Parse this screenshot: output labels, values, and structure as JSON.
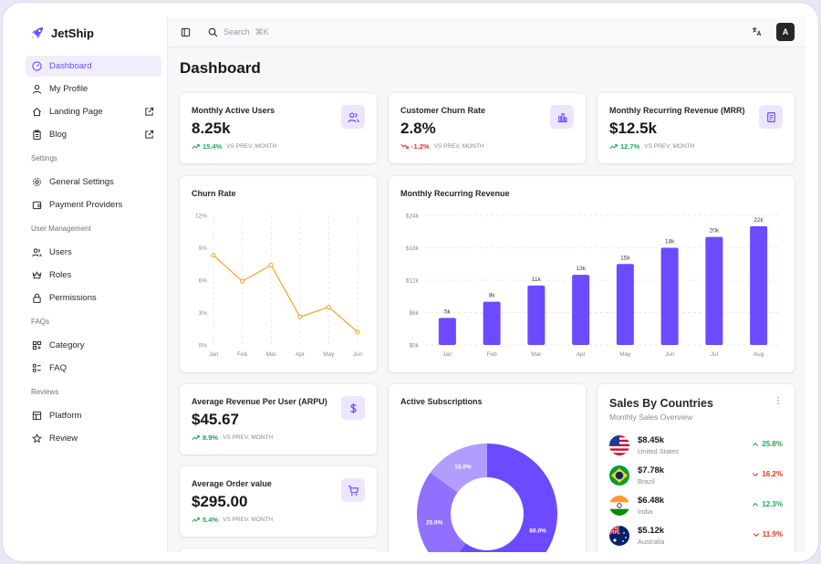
{
  "brand": {
    "name": "JetShip",
    "accent": "#6d4aff"
  },
  "sidebar": {
    "items_top": [
      {
        "label": "Dashboard"
      },
      {
        "label": "My Profile"
      },
      {
        "label": "Landing Page"
      },
      {
        "label": "Blog"
      }
    ],
    "sections": [
      {
        "title": "Settings",
        "items": [
          "General Settings",
          "Payment Providers"
        ]
      },
      {
        "title": "User Management",
        "items": [
          "Users",
          "Roles",
          "Permissions"
        ]
      },
      {
        "title": "FAQs",
        "items": [
          "Category",
          "FAQ"
        ]
      },
      {
        "title": "Reviews",
        "items": [
          "Platform",
          "Review"
        ]
      }
    ]
  },
  "topbar": {
    "search_placeholder": "Search",
    "search_shortcut": "⌘K",
    "avatar_initial": "A"
  },
  "page": {
    "title": "Dashboard"
  },
  "stats": {
    "mau": {
      "title": "Monthly Active Users",
      "value": "8.25k",
      "change": "15.4%",
      "label": "VS PREV. MONTH"
    },
    "churn": {
      "title": "Customer Churn Rate",
      "value": "2.8%",
      "change": "-1.2%",
      "label": "VS PREV. MONTH"
    },
    "mrr": {
      "title": "Monthly Recurring Revenue (MRR)",
      "value": "$12.5k",
      "change": "12.7%",
      "label": "VS PREV. MONTH"
    },
    "arpu": {
      "title": "Average Revenue Per User (ARPU)",
      "value": "$45.67",
      "change": "8.9%",
      "label": "VS PREV. MONTH"
    },
    "aov": {
      "title": "Average Order value",
      "value": "$295.00",
      "change": "5.4%",
      "label": "VS PREV. MONTH"
    }
  },
  "charts": {
    "churn_title": "Churn Rate",
    "mrr_title": "Monthly Recurring Revenue",
    "subs_title": "Active Subscriptions"
  },
  "chart_data": [
    {
      "type": "line",
      "title": "Churn Rate",
      "categories": [
        "Jan",
        "Feb",
        "Mar",
        "Apr",
        "May",
        "Jun"
      ],
      "values": [
        8.3,
        5.9,
        7.4,
        2.6,
        3.5,
        1.2
      ],
      "yticks": [
        "0%",
        "3%",
        "6%",
        "9%",
        "12%"
      ],
      "ylim": [
        0,
        12
      ],
      "color": "#f5a524"
    },
    {
      "type": "bar",
      "title": "Monthly Recurring Revenue",
      "categories": [
        "Jan",
        "Feb",
        "Mar",
        "Apr",
        "May",
        "Jun",
        "Jul",
        "Aug"
      ],
      "values": [
        5,
        8,
        11,
        13,
        15,
        18,
        20,
        22
      ],
      "labels": [
        "5k",
        "8k",
        "11k",
        "13k",
        "15k",
        "18k",
        "20k",
        "22k"
      ],
      "yticks": [
        "$0k",
        "$6k",
        "$12k",
        "$18k",
        "$24k"
      ],
      "ylim": [
        0,
        24
      ],
      "color": "#6d4aff"
    },
    {
      "type": "pie",
      "title": "Active Subscriptions",
      "slices": [
        {
          "label": "60.0%",
          "value": 60,
          "color": "#6d4aff"
        },
        {
          "label": "25.0%",
          "value": 25,
          "color": "#9170ff"
        },
        {
          "label": "15.0%",
          "value": 15,
          "color": "#b39cff"
        }
      ]
    }
  ],
  "countries": {
    "title": "Sales By Countries",
    "subtitle": "Monthly Sales Overview",
    "more": "⋮",
    "rows": [
      {
        "value": "$8.45k",
        "name": "United States",
        "change": "25.8%",
        "dir": "up"
      },
      {
        "value": "$7.78k",
        "name": "Brazil",
        "change": "16.2%",
        "dir": "down"
      },
      {
        "value": "$6.48k",
        "name": "India",
        "change": "12.3%",
        "dir": "up"
      },
      {
        "value": "$5.12k",
        "name": "Australia",
        "change": "11.9%",
        "dir": "down"
      }
    ]
  }
}
